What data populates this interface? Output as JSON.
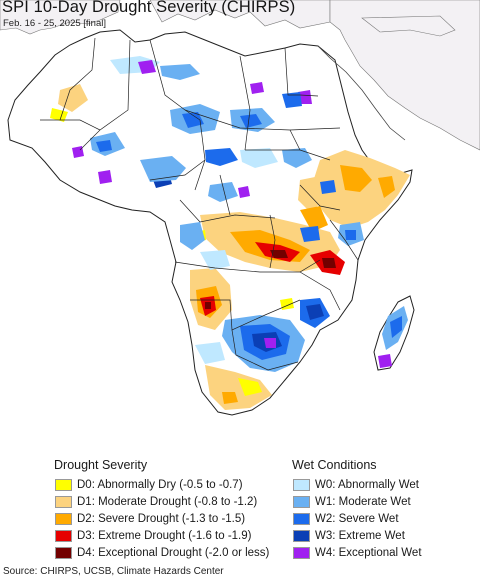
{
  "header": {
    "title": "SPI 10-Day Drought Severity (CHIRPS)",
    "period": "Feb. 16 - 25, 2025 [final]"
  },
  "colors": {
    "ocean": "#ffffff",
    "land_outside": "#f3f1f4",
    "land_normal": "#ffffff",
    "borders": "#333333",
    "d0": "#ffff00",
    "d1": "#fcd37f",
    "d2": "#ffaa00",
    "d3": "#e60000",
    "d4": "#730000",
    "w0": "#bfe8ff",
    "w1": "#6ab0f2",
    "w2": "#1c6bec",
    "w3": "#0b3fb5",
    "w4": "#a020f0"
  },
  "legend": {
    "drought": {
      "heading": "Drought Severity",
      "items": [
        {
          "label": "D0: Abnormally Dry (-0.5 to -0.7)",
          "color": "#ffff00"
        },
        {
          "label": "D1: Moderate Drought (-0.8 to -1.2)",
          "color": "#fcd37f"
        },
        {
          "label": "D2: Severe Drought (-1.3 to -1.5)",
          "color": "#ffaa00"
        },
        {
          "label": "D3: Extreme Drought (-1.6 to -1.9)",
          "color": "#e60000"
        },
        {
          "label": "D4: Exceptional Drought (-2.0 or less)",
          "color": "#730000"
        }
      ]
    },
    "wet": {
      "heading": "Wet Conditions",
      "items": [
        {
          "label": "W0: Abnormally Wet",
          "color": "#bfe8ff"
        },
        {
          "label": "W1: Moderate Wet",
          "color": "#6ab0f2"
        },
        {
          "label": "W2: Severe Wet",
          "color": "#1c6bec"
        },
        {
          "label": "W3: Extreme Wet",
          "color": "#0b3fb5"
        },
        {
          "label": "W4: Exceptional Wet",
          "color": "#a020f0"
        }
      ]
    }
  },
  "footer": {
    "source": "Source: CHIRPS, UCSB, Climate Hazards Center"
  }
}
